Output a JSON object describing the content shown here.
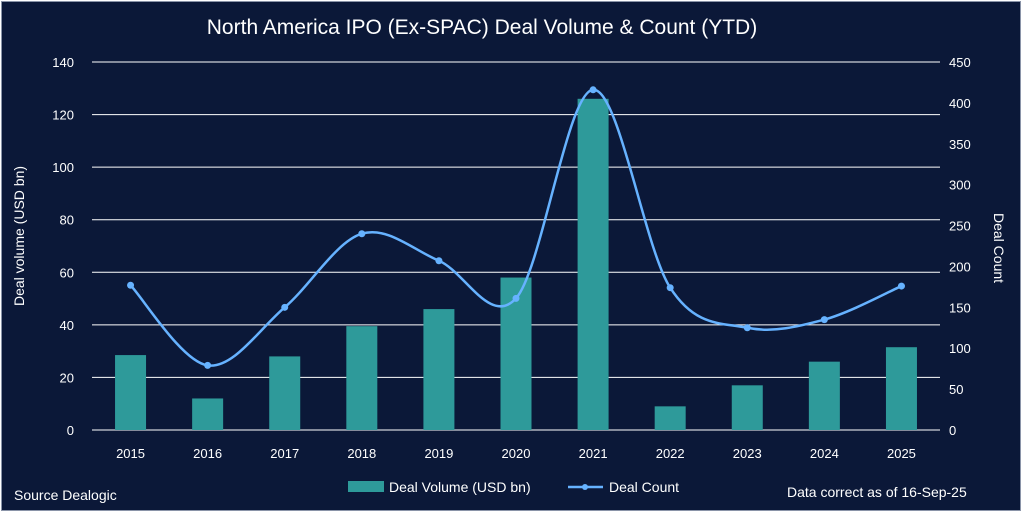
{
  "chart_data": {
    "type": "bar",
    "title": "North America IPO (Ex-SPAC) Deal Volume & Count (YTD)",
    "categories": [
      "2015",
      "2016",
      "2017",
      "2018",
      "2019",
      "2020",
      "2021",
      "2022",
      "2023",
      "2024",
      "2025"
    ],
    "series": [
      {
        "name": "Deal Volume (USD bn)",
        "type": "bar",
        "axis": "left",
        "values": [
          28.5,
          12,
          28,
          39.5,
          46,
          58,
          126,
          9,
          17,
          26,
          31.5
        ]
      },
      {
        "name": "Deal Count",
        "type": "line",
        "axis": "right",
        "values": [
          177,
          79,
          150,
          240,
          207,
          161,
          416,
          174,
          125,
          135,
          176
        ]
      }
    ],
    "ylabel": "Deal volume (USD bn)",
    "y2label": "Deal Count",
    "ylim": [
      0,
      140
    ],
    "yticks": [
      "0",
      "20",
      "40",
      "60",
      "80",
      "100",
      "120",
      "140"
    ],
    "y2lim": [
      0,
      450
    ],
    "y2ticks": [
      "0",
      "50",
      "100",
      "150",
      "200",
      "250",
      "300",
      "350",
      "400",
      "450"
    ],
    "grid": true,
    "legend_position": "bottom",
    "source": "Source Dealogic",
    "note": "Data correct as of 16-Sep-25"
  },
  "colors": {
    "bar": "#2e9a9a",
    "line": "#66b2ff",
    "grid": "#ffffff",
    "background": "#0b1838"
  }
}
